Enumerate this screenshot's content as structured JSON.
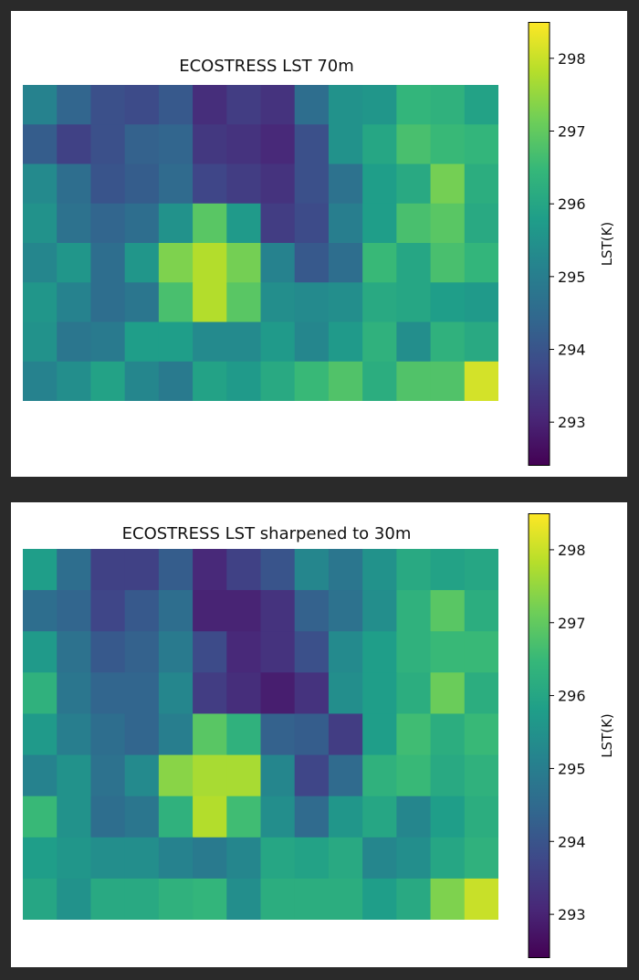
{
  "colormap": [
    "#440154",
    "#482878",
    "#3e4989",
    "#31688e",
    "#26828e",
    "#1f9e89",
    "#35b779",
    "#6ece58",
    "#b5de2b",
    "#fde725"
  ],
  "chart_data": [
    {
      "type": "heatmap",
      "title": "ECOSTRESS LST 70m",
      "colorbar_label": "LST(K)",
      "vmin": 292.4,
      "vmax": 298.5,
      "colorbar_ticks": [
        293,
        294,
        295,
        296,
        297,
        298
      ],
      "axes_visible": false,
      "resolution_m": 70,
      "grid": [
        [
          295.1,
          294.4,
          293.9,
          293.8,
          294.1,
          293.2,
          293.5,
          293.3,
          294.6,
          295.5,
          295.6,
          296.4,
          296.3,
          295.9
        ],
        [
          294.2,
          293.6,
          293.9,
          294.3,
          294.4,
          293.4,
          293.3,
          293.1,
          293.9,
          295.5,
          296.0,
          296.7,
          296.5,
          296.4
        ],
        [
          295.3,
          294.6,
          294.0,
          294.2,
          294.5,
          293.7,
          293.5,
          293.3,
          293.9,
          294.7,
          295.8,
          296.1,
          297.2,
          296.2
        ],
        [
          295.5,
          294.7,
          294.4,
          294.6,
          295.5,
          296.9,
          295.7,
          293.5,
          293.8,
          295.0,
          295.8,
          296.7,
          296.9,
          296.1
        ],
        [
          295.2,
          295.6,
          294.6,
          295.6,
          297.3,
          297.8,
          297.2,
          295.1,
          294.1,
          294.6,
          296.5,
          296.0,
          296.7,
          296.4
        ],
        [
          295.6,
          295.1,
          294.6,
          294.8,
          296.7,
          297.8,
          296.9,
          295.4,
          295.3,
          295.4,
          296.1,
          296.0,
          295.8,
          295.7
        ],
        [
          295.5,
          294.8,
          294.9,
          295.8,
          295.8,
          295.3,
          295.3,
          295.7,
          295.2,
          295.7,
          296.3,
          295.4,
          296.3,
          296.1
        ],
        [
          295.1,
          295.4,
          295.9,
          295.2,
          294.9,
          295.9,
          295.7,
          296.1,
          296.5,
          296.8,
          296.2,
          296.8,
          296.8,
          298.1
        ]
      ]
    },
    {
      "type": "heatmap",
      "title": "ECOSTRESS LST sharpened to 30m",
      "colorbar_label": "LST(K)",
      "vmin": 292.4,
      "vmax": 298.5,
      "colorbar_ticks": [
        293,
        294,
        295,
        296,
        297,
        298
      ],
      "axes_visible": false,
      "resolution_m": 30,
      "grid": [
        [
          295.8,
          294.6,
          293.6,
          293.6,
          294.2,
          293.1,
          293.6,
          294.0,
          295.2,
          294.8,
          295.5,
          296.1,
          295.9,
          296.0
        ],
        [
          294.6,
          294.4,
          293.7,
          294.1,
          294.6,
          293.0,
          293.0,
          293.3,
          294.3,
          294.7,
          295.4,
          296.3,
          296.9,
          296.2
        ],
        [
          295.7,
          294.7,
          294.1,
          294.3,
          294.9,
          293.8,
          293.1,
          293.3,
          293.9,
          295.3,
          295.8,
          296.3,
          296.5,
          296.5
        ],
        [
          296.3,
          294.8,
          294.4,
          294.4,
          295.2,
          293.5,
          293.2,
          292.9,
          293.3,
          295.4,
          295.8,
          296.2,
          297.1,
          296.2
        ],
        [
          295.7,
          295.0,
          294.6,
          294.4,
          295.0,
          296.9,
          296.3,
          294.3,
          294.2,
          293.5,
          295.8,
          296.6,
          296.2,
          296.5
        ],
        [
          295.1,
          295.5,
          294.7,
          295.3,
          297.4,
          297.7,
          297.7,
          295.2,
          293.7,
          294.5,
          296.3,
          296.5,
          296.1,
          296.3
        ],
        [
          296.5,
          295.5,
          294.6,
          294.8,
          296.3,
          297.8,
          296.6,
          295.4,
          294.5,
          295.6,
          296.0,
          295.2,
          295.8,
          296.2
        ],
        [
          295.8,
          295.6,
          295.4,
          295.4,
          295.1,
          294.9,
          295.2,
          296.0,
          295.9,
          296.1,
          295.2,
          295.4,
          296.0,
          296.3
        ],
        [
          296.0,
          295.5,
          296.1,
          296.1,
          296.3,
          296.4,
          295.4,
          296.2,
          296.2,
          296.2,
          295.8,
          296.1,
          297.3,
          298.0
        ]
      ]
    }
  ]
}
